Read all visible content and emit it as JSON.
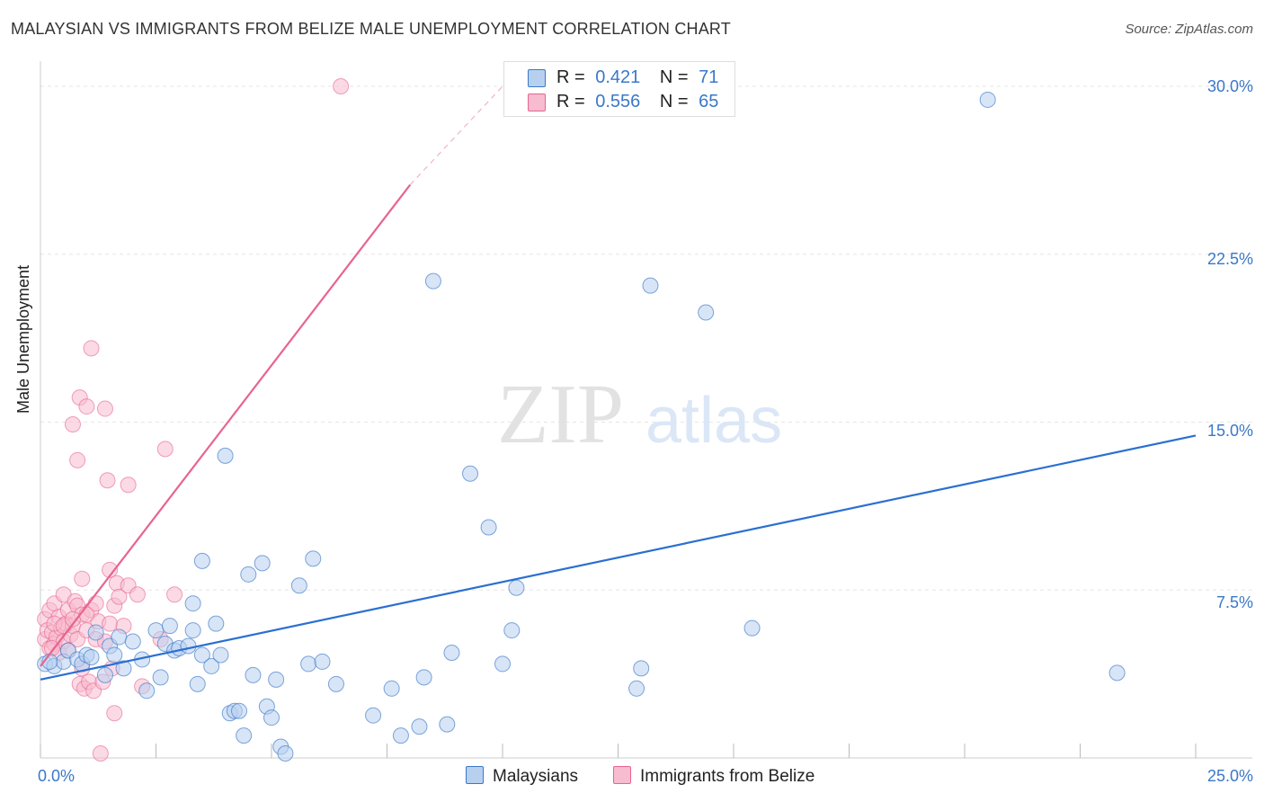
{
  "title": "MALAYSIAN VS IMMIGRANTS FROM BELIZE MALE UNEMPLOYMENT CORRELATION CHART",
  "source": "Source: ZipAtlas.com",
  "watermark": {
    "zip": "ZIP",
    "atlas": "atlas"
  },
  "colors": {
    "blue": "#3a78c8",
    "blue_fill": "#b8d0f0",
    "blue_line": "#2b6fd1",
    "pink_fill": "#f7bcd0",
    "pink_line": "#e8648e",
    "grid": "#e6e6e6"
  },
  "legend_top": {
    "series1": {
      "r_label": "R =",
      "r_value": "0.421",
      "n_label": "N =",
      "n_value": "71"
    },
    "series2": {
      "r_label": "R =",
      "r_value": "0.556",
      "n_label": "N =",
      "n_value": "65"
    }
  },
  "chart_data": {
    "type": "scatter",
    "title": "MALAYSIAN VS IMMIGRANTS FROM BELIZE MALE UNEMPLOYMENT CORRELATION CHART",
    "xlabel": "",
    "ylabel": "Male Unemployment",
    "xlim": [
      0,
      25
    ],
    "ylim": [
      0,
      30
    ],
    "x_tick_labels": [
      "0.0%",
      "25.0%"
    ],
    "y_ticks": [
      7.5,
      15.0,
      22.5,
      30.0
    ],
    "y_tick_labels": [
      "7.5%",
      "15.0%",
      "22.5%",
      "30.0%"
    ],
    "legend": [
      "Malaysians",
      "Immigrants from Belize"
    ],
    "series": [
      {
        "name": "Malaysians",
        "trend": {
          "x0": 0,
          "y0": 3.5,
          "x1": 25,
          "y1": 14.4
        },
        "points": [
          [
            0.1,
            4.2
          ],
          [
            0.3,
            4.1
          ],
          [
            0.5,
            4.3
          ],
          [
            0.6,
            4.8
          ],
          [
            0.8,
            4.4
          ],
          [
            0.9,
            4.2
          ],
          [
            1.0,
            4.6
          ],
          [
            1.2,
            5.6
          ],
          [
            1.4,
            3.7
          ],
          [
            1.5,
            5.0
          ],
          [
            1.6,
            4.6
          ],
          [
            1.7,
            5.4
          ],
          [
            1.8,
            4.0
          ],
          [
            2.0,
            5.2
          ],
          [
            2.2,
            4.4
          ],
          [
            2.3,
            3.0
          ],
          [
            2.5,
            5.7
          ],
          [
            2.7,
            5.1
          ],
          [
            2.8,
            5.9
          ],
          [
            2.9,
            4.8
          ],
          [
            3.0,
            4.9
          ],
          [
            3.2,
            5.0
          ],
          [
            3.3,
            5.7
          ],
          [
            3.3,
            6.9
          ],
          [
            3.4,
            3.3
          ],
          [
            3.5,
            4.6
          ],
          [
            3.5,
            8.8
          ],
          [
            3.7,
            4.1
          ],
          [
            3.8,
            6.0
          ],
          [
            3.9,
            4.6
          ],
          [
            4.0,
            13.5
          ],
          [
            4.1,
            2.0
          ],
          [
            4.2,
            2.1
          ],
          [
            4.3,
            2.1
          ],
          [
            4.4,
            1.0
          ],
          [
            4.5,
            8.2
          ],
          [
            4.6,
            3.7
          ],
          [
            4.8,
            8.7
          ],
          [
            4.9,
            2.3
          ],
          [
            5.0,
            1.8
          ],
          [
            5.1,
            3.5
          ],
          [
            5.2,
            0.5
          ],
          [
            5.3,
            0.2
          ],
          [
            5.6,
            7.7
          ],
          [
            5.8,
            4.2
          ],
          [
            5.9,
            8.9
          ],
          [
            6.1,
            4.3
          ],
          [
            6.4,
            3.3
          ],
          [
            7.2,
            1.9
          ],
          [
            7.6,
            3.1
          ],
          [
            7.8,
            1.0
          ],
          [
            8.2,
            1.4
          ],
          [
            8.3,
            3.6
          ],
          [
            8.5,
            21.3
          ],
          [
            8.8,
            1.5
          ],
          [
            8.9,
            4.7
          ],
          [
            9.3,
            12.7
          ],
          [
            9.7,
            10.3
          ],
          [
            10.0,
            4.2
          ],
          [
            10.2,
            5.7
          ],
          [
            10.3,
            7.6
          ],
          [
            12.9,
            3.1
          ],
          [
            13.0,
            4.0
          ],
          [
            13.2,
            21.1
          ],
          [
            14.4,
            19.9
          ],
          [
            15.4,
            5.8
          ],
          [
            20.5,
            29.4
          ],
          [
            23.3,
            3.8
          ],
          [
            0.2,
            4.3
          ],
          [
            1.1,
            4.5
          ],
          [
            2.6,
            3.6
          ]
        ]
      },
      {
        "name": "Immigrants from Belize",
        "trend": {
          "x0": 0,
          "y0": 4.1,
          "x1": 8.0,
          "y1": 25.6,
          "dash_to": {
            "x": 10,
            "y": 30
          }
        },
        "points": [
          [
            0.1,
            5.3
          ],
          [
            0.1,
            6.2
          ],
          [
            0.15,
            5.7
          ],
          [
            0.2,
            4.9
          ],
          [
            0.2,
            6.6
          ],
          [
            0.25,
            5.6
          ],
          [
            0.3,
            5.1
          ],
          [
            0.3,
            6.9
          ],
          [
            0.35,
            5.4
          ],
          [
            0.4,
            4.7
          ],
          [
            0.4,
            6.3
          ],
          [
            0.45,
            5.8
          ],
          [
            0.5,
            5.2
          ],
          [
            0.5,
            7.3
          ],
          [
            0.55,
            6.0
          ],
          [
            0.6,
            4.8
          ],
          [
            0.6,
            6.6
          ],
          [
            0.65,
            5.5
          ],
          [
            0.7,
            5.9
          ],
          [
            0.7,
            14.9
          ],
          [
            0.75,
            7.0
          ],
          [
            0.8,
            5.3
          ],
          [
            0.8,
            6.8
          ],
          [
            0.8,
            13.3
          ],
          [
            0.85,
            3.3
          ],
          [
            0.85,
            16.1
          ],
          [
            0.9,
            4.0
          ],
          [
            0.9,
            6.4
          ],
          [
            0.9,
            8.0
          ],
          [
            0.95,
            3.1
          ],
          [
            1.0,
            5.7
          ],
          [
            1.0,
            15.7
          ],
          [
            1.05,
            3.4
          ],
          [
            1.1,
            6.6
          ],
          [
            1.1,
            18.3
          ],
          [
            1.15,
            3.0
          ],
          [
            1.2,
            5.3
          ],
          [
            1.2,
            6.9
          ],
          [
            1.25,
            6.1
          ],
          [
            1.3,
            0.2
          ],
          [
            1.35,
            3.4
          ],
          [
            1.4,
            5.2
          ],
          [
            1.4,
            15.6
          ],
          [
            1.45,
            12.4
          ],
          [
            1.5,
            6.0
          ],
          [
            1.5,
            8.4
          ],
          [
            1.55,
            4.0
          ],
          [
            1.6,
            6.8
          ],
          [
            1.6,
            2.0
          ],
          [
            1.65,
            7.8
          ],
          [
            1.7,
            7.2
          ],
          [
            1.8,
            5.9
          ],
          [
            1.9,
            7.7
          ],
          [
            1.9,
            12.2
          ],
          [
            2.1,
            7.3
          ],
          [
            2.2,
            3.2
          ],
          [
            2.6,
            5.3
          ],
          [
            2.7,
            13.8
          ],
          [
            2.9,
            7.3
          ],
          [
            6.5,
            30.0
          ],
          [
            0.3,
            6.0
          ],
          [
            0.5,
            5.9
          ],
          [
            0.7,
            6.2
          ],
          [
            0.25,
            4.9
          ],
          [
            1.0,
            6.4
          ]
        ]
      }
    ]
  },
  "bottom_legend": {
    "item1": "Malaysians",
    "item2": "Immigrants from Belize"
  }
}
